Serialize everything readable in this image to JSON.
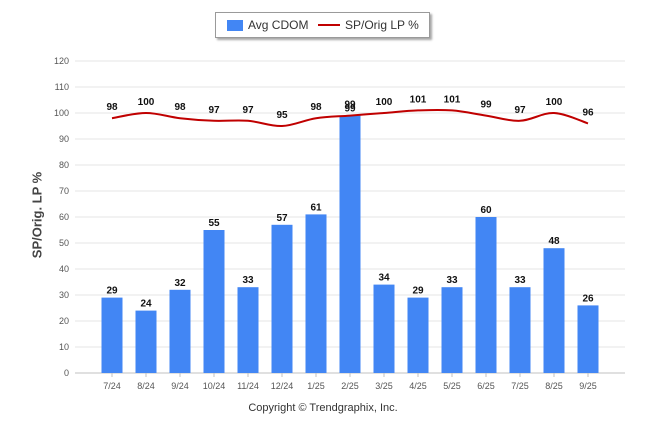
{
  "chart_data": {
    "type": "bar",
    "categories": [
      "7/24",
      "8/24",
      "9/24",
      "10/24",
      "11/24",
      "12/24",
      "1/25",
      "2/25",
      "3/25",
      "4/25",
      "5/25",
      "6/25",
      "7/25",
      "8/25",
      "9/25"
    ],
    "series": [
      {
        "name": "Avg CDOM",
        "type": "bar",
        "color": "#4286f4",
        "values": [
          29,
          24,
          32,
          55,
          33,
          57,
          61,
          99,
          34,
          29,
          33,
          60,
          33,
          48,
          26
        ]
      },
      {
        "name": "SP/Orig LP %",
        "type": "line",
        "color": "#c00000",
        "values": [
          98,
          100,
          98,
          97,
          97,
          95,
          98,
          99,
          100,
          101,
          101,
          99,
          97,
          100,
          96
        ]
      }
    ],
    "ylabel": "SP/Orig. LP %",
    "ylim": [
      0,
      120
    ],
    "yticks": [
      0,
      10,
      20,
      30,
      40,
      50,
      60,
      70,
      80,
      90,
      100,
      110,
      120
    ],
    "grid": true,
    "legend": "top-center"
  },
  "legend": {
    "bar_label": "Avg CDOM",
    "line_label": "SP/Orig LP %"
  },
  "footer": {
    "copyright": "Copyright © Trendgraphix, Inc."
  }
}
